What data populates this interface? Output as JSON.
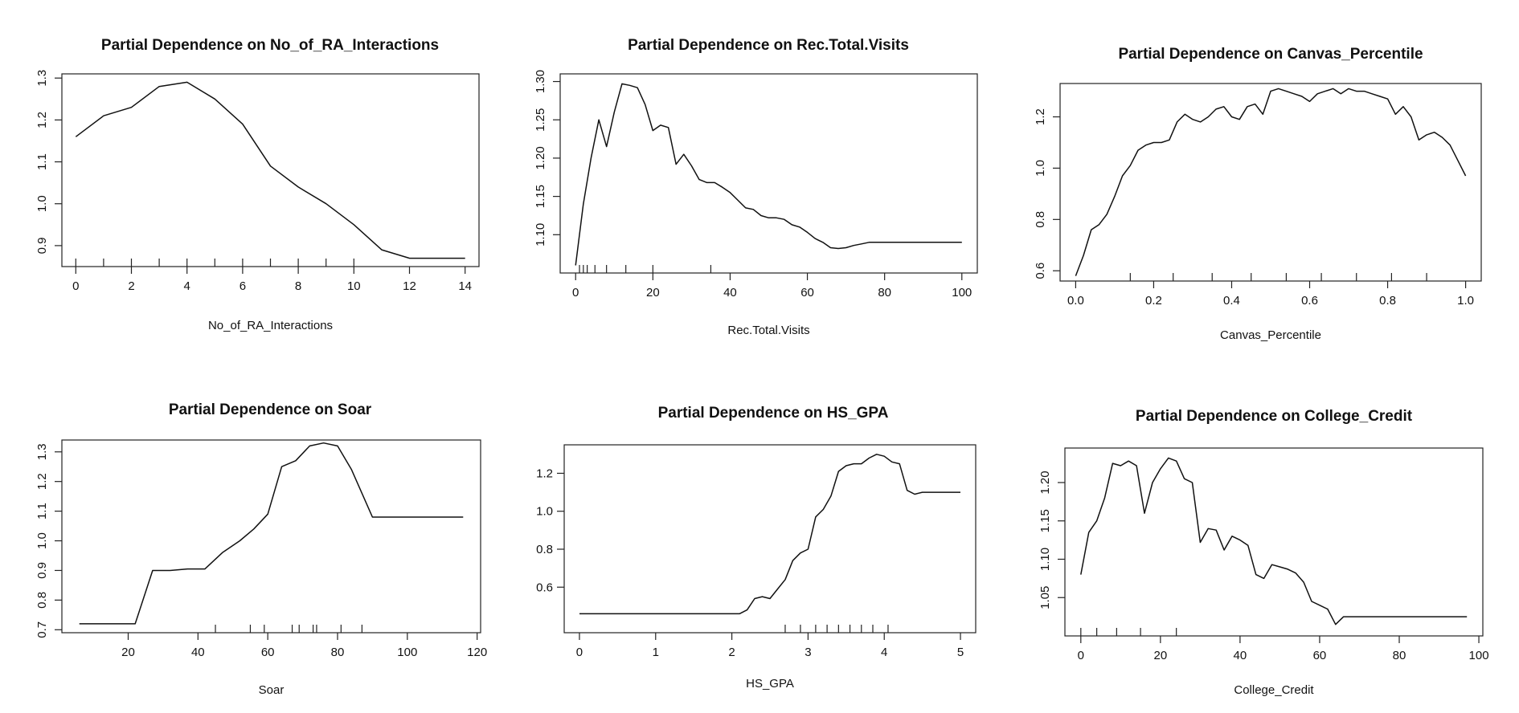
{
  "chart_data": [
    {
      "type": "line",
      "title": "Partial Dependence on No_of_RA_Interactions",
      "xlabel": "No_of_RA_Interactions",
      "ylabel": "",
      "xlim": [
        -0.5,
        14.5
      ],
      "ylim": [
        0.85,
        1.31
      ],
      "xticks": [
        0,
        2,
        4,
        6,
        8,
        10,
        12,
        14
      ],
      "yticks": [
        0.9,
        1.0,
        1.1,
        1.2,
        1.3
      ],
      "ytick_labels": [
        "0.9",
        "1.0",
        "1.1",
        "1.2",
        "1.3"
      ],
      "rotate_y": true,
      "x": [
        0,
        1,
        2,
        3,
        4,
        5,
        6,
        7,
        8,
        9,
        10,
        11,
        12,
        13,
        14
      ],
      "y": [
        1.16,
        1.21,
        1.23,
        1.28,
        1.29,
        1.25,
        1.19,
        1.09,
        1.04,
        1.0,
        0.95,
        0.89,
        0.87,
        0.87,
        0.87
      ],
      "rug": [
        0,
        1,
        2,
        3,
        4,
        5,
        6,
        7,
        8,
        9,
        10
      ]
    },
    {
      "type": "line",
      "title": "Partial Dependence on Rec.Total.Visits",
      "xlabel": "Rec.Total.Visits",
      "ylabel": "",
      "xlim": [
        -4,
        104
      ],
      "ylim": [
        1.05,
        1.31
      ],
      "xticks": [
        0,
        20,
        40,
        60,
        80,
        100
      ],
      "yticks": [
        1.1,
        1.15,
        1.2,
        1.25,
        1.3
      ],
      "ytick_labels": [
        "1.10",
        "1.15",
        "1.20",
        "1.25",
        "1.30"
      ],
      "rotate_y": true,
      "x": [
        0,
        2,
        4,
        6,
        8,
        10,
        12,
        14,
        16,
        18,
        20,
        22,
        24,
        26,
        28,
        30,
        32,
        34,
        36,
        38,
        40,
        42,
        44,
        46,
        48,
        50,
        52,
        54,
        56,
        58,
        60,
        62,
        64,
        66,
        68,
        70,
        72,
        74,
        76,
        78,
        80,
        85,
        90,
        95,
        100
      ],
      "y": [
        1.06,
        1.14,
        1.2,
        1.25,
        1.215,
        1.26,
        1.297,
        1.295,
        1.292,
        1.27,
        1.236,
        1.243,
        1.24,
        1.192,
        1.205,
        1.19,
        1.172,
        1.168,
        1.168,
        1.162,
        1.155,
        1.145,
        1.135,
        1.133,
        1.125,
        1.122,
        1.122,
        1.12,
        1.113,
        1.11,
        1.103,
        1.095,
        1.09,
        1.083,
        1.082,
        1.083,
        1.086,
        1.088,
        1.09,
        1.09,
        1.09,
        1.09,
        1.09,
        1.09,
        1.09
      ],
      "rug": [
        1,
        2,
        3,
        5,
        8,
        13,
        20,
        35
      ]
    },
    {
      "type": "line",
      "title": "Partial Dependence on Canvas_Percentile",
      "xlabel": "Canvas_Percentile",
      "ylabel": "",
      "xlim": [
        -0.04,
        1.04
      ],
      "ylim": [
        0.56,
        1.33
      ],
      "xticks": [
        0.0,
        0.2,
        0.4,
        0.6,
        0.8,
        1.0
      ],
      "xtick_labels": [
        "0.0",
        "0.2",
        "0.4",
        "0.6",
        "0.8",
        "1.0"
      ],
      "yticks": [
        0.6,
        0.8,
        1.0,
        1.2
      ],
      "ytick_labels": [
        "0.6",
        "0.8",
        "1.0",
        "1.2"
      ],
      "rotate_y": true,
      "x": [
        0.0,
        0.02,
        0.04,
        0.06,
        0.08,
        0.1,
        0.12,
        0.14,
        0.16,
        0.18,
        0.2,
        0.22,
        0.24,
        0.26,
        0.28,
        0.3,
        0.32,
        0.34,
        0.36,
        0.38,
        0.4,
        0.42,
        0.44,
        0.46,
        0.48,
        0.5,
        0.52,
        0.54,
        0.56,
        0.58,
        0.6,
        0.62,
        0.64,
        0.66,
        0.68,
        0.7,
        0.72,
        0.74,
        0.76,
        0.78,
        0.8,
        0.82,
        0.84,
        0.86,
        0.88,
        0.9,
        0.92,
        0.94,
        0.96,
        0.98,
        1.0
      ],
      "y": [
        0.58,
        0.66,
        0.76,
        0.78,
        0.82,
        0.89,
        0.97,
        1.01,
        1.07,
        1.09,
        1.1,
        1.1,
        1.11,
        1.18,
        1.21,
        1.19,
        1.18,
        1.2,
        1.23,
        1.24,
        1.2,
        1.19,
        1.24,
        1.25,
        1.21,
        1.3,
        1.31,
        1.3,
        1.29,
        1.28,
        1.26,
        1.29,
        1.3,
        1.31,
        1.29,
        1.31,
        1.3,
        1.3,
        1.29,
        1.28,
        1.27,
        1.21,
        1.24,
        1.2,
        1.11,
        1.13,
        1.14,
        1.12,
        1.09,
        1.03,
        0.97
      ],
      "rug": [
        0.14,
        0.25,
        0.35,
        0.45,
        0.54,
        0.63,
        0.72,
        0.81,
        0.9
      ]
    },
    {
      "type": "line",
      "title": "Partial Dependence on Soar",
      "xlabel": "Soar",
      "ylabel": "",
      "xlim": [
        1,
        121
      ],
      "ylim": [
        0.69,
        1.34
      ],
      "xticks": [
        20,
        40,
        60,
        80,
        100,
        120
      ],
      "yticks": [
        0.7,
        0.8,
        0.9,
        1.0,
        1.1,
        1.2,
        1.3
      ],
      "ytick_labels": [
        "0.7",
        "0.8",
        "0.9",
        "1.0",
        "1.1",
        "1.2",
        "1.3"
      ],
      "rotate_y": true,
      "x": [
        6,
        10,
        15,
        22,
        27,
        32,
        37,
        42,
        47,
        52,
        56,
        60,
        64,
        68,
        72,
        76,
        80,
        84,
        90,
        100,
        110,
        116
      ],
      "y": [
        0.72,
        0.72,
        0.72,
        0.72,
        0.9,
        0.9,
        0.905,
        0.905,
        0.96,
        1.0,
        1.04,
        1.09,
        1.25,
        1.27,
        1.32,
        1.33,
        1.32,
        1.24,
        1.08,
        1.08,
        1.08,
        1.08
      ],
      "rug": [
        45,
        55,
        59,
        67,
        69,
        73,
        74,
        81,
        87
      ]
    },
    {
      "type": "line",
      "title": "Partial Dependence on HS_GPA",
      "xlabel": "HS_GPA",
      "ylabel": "",
      "xlim": [
        -0.2,
        5.2
      ],
      "ylim": [
        0.36,
        1.35
      ],
      "xticks": [
        0,
        1,
        2,
        3,
        4,
        5
      ],
      "yticks": [
        0.6,
        0.8,
        1.0,
        1.2
      ],
      "ytick_labels": [
        "0.6",
        "0.8",
        "1.0",
        "1.2"
      ],
      "rotate_y": false,
      "x": [
        0.0,
        0.5,
        1.0,
        1.5,
        2.0,
        2.1,
        2.2,
        2.3,
        2.4,
        2.5,
        2.6,
        2.7,
        2.8,
        2.9,
        3.0,
        3.1,
        3.2,
        3.3,
        3.4,
        3.5,
        3.6,
        3.7,
        3.8,
        3.9,
        4.0,
        4.1,
        4.2,
        4.3,
        4.4,
        4.5,
        4.6,
        4.8,
        5.0
      ],
      "y": [
        0.46,
        0.46,
        0.46,
        0.46,
        0.46,
        0.46,
        0.48,
        0.54,
        0.55,
        0.54,
        0.59,
        0.64,
        0.74,
        0.78,
        0.8,
        0.97,
        1.01,
        1.08,
        1.21,
        1.24,
        1.25,
        1.25,
        1.28,
        1.3,
        1.29,
        1.26,
        1.25,
        1.11,
        1.09,
        1.1,
        1.1,
        1.1,
        1.1
      ],
      "rug": [
        2.7,
        2.9,
        3.1,
        3.25,
        3.4,
        3.55,
        3.7,
        3.85,
        4.05
      ]
    },
    {
      "type": "line",
      "title": "Partial Dependence on College_Credit",
      "xlabel": "College_Credit",
      "ylabel": "",
      "xlim": [
        -4,
        101
      ],
      "ylim": [
        1.0,
        1.245
      ],
      "xticks": [
        0,
        20,
        40,
        60,
        80,
        100
      ],
      "yticks": [
        1.05,
        1.1,
        1.15,
        1.2
      ],
      "ytick_labels": [
        "1.05",
        "1.10",
        "1.15",
        "1.20"
      ],
      "rotate_y": true,
      "x": [
        0,
        2,
        4,
        6,
        8,
        10,
        12,
        14,
        16,
        18,
        20,
        22,
        24,
        26,
        28,
        30,
        32,
        34,
        36,
        38,
        40,
        42,
        44,
        46,
        48,
        50,
        52,
        54,
        56,
        58,
        60,
        62,
        64,
        66,
        70,
        80,
        90,
        97
      ],
      "y": [
        1.08,
        1.135,
        1.15,
        1.18,
        1.225,
        1.222,
        1.228,
        1.222,
        1.16,
        1.2,
        1.218,
        1.232,
        1.228,
        1.205,
        1.2,
        1.122,
        1.14,
        1.138,
        1.112,
        1.13,
        1.125,
        1.118,
        1.08,
        1.075,
        1.093,
        1.09,
        1.087,
        1.082,
        1.07,
        1.045,
        1.04,
        1.035,
        1.015,
        1.025,
        1.025,
        1.025,
        1.025,
        1.025
      ],
      "rug": [
        0,
        4,
        9,
        15,
        24
      ]
    }
  ]
}
